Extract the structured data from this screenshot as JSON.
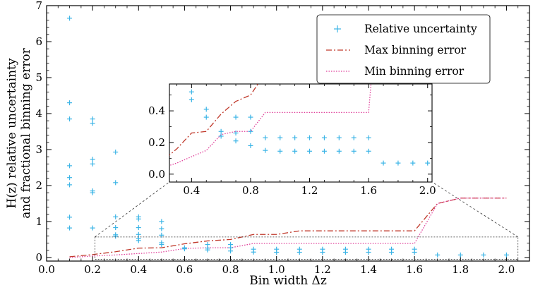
{
  "chart_data": {
    "type": "scatter",
    "xlabel": "Bin width Δz",
    "ylabel_line1": "H(z) relative uncertainty",
    "ylabel_line2": "and fractional binning error",
    "xlim": [
      0.0,
      2.1
    ],
    "ylim": [
      -0.1,
      7.0
    ],
    "x_ticks": [
      "0.0",
      "0.2",
      "0.4",
      "0.6",
      "0.8",
      "1.0",
      "1.2",
      "1.4",
      "1.6",
      "1.8",
      "2.0"
    ],
    "y_ticks": [
      "0",
      "1",
      "2",
      "3",
      "4",
      "5",
      "6",
      "7"
    ],
    "legend": [
      "Relative uncertainty",
      "Max binning error",
      "Min binning error"
    ],
    "colors": {
      "relative_uncertainty": "#3bb4e6",
      "max_binning_error": "#c0392b",
      "min_binning_error": "#e0409a"
    },
    "series": [
      {
        "name": "Relative uncertainty",
        "type": "scatter",
        "points": [
          [
            0.1,
            6.65
          ],
          [
            0.1,
            4.3
          ],
          [
            0.1,
            3.85
          ],
          [
            0.1,
            2.55
          ],
          [
            0.1,
            2.22
          ],
          [
            0.1,
            2.02
          ],
          [
            0.1,
            1.12
          ],
          [
            0.1,
            0.82
          ],
          [
            0.2,
            3.85
          ],
          [
            0.2,
            3.73
          ],
          [
            0.2,
            2.73
          ],
          [
            0.2,
            2.6
          ],
          [
            0.2,
            1.85
          ],
          [
            0.2,
            1.8
          ],
          [
            0.2,
            0.82
          ],
          [
            0.3,
            2.93
          ],
          [
            0.3,
            2.08
          ],
          [
            0.3,
            1.13
          ],
          [
            0.3,
            0.83
          ],
          [
            0.3,
            0.63
          ],
          [
            0.3,
            0.59
          ],
          [
            0.4,
            1.13
          ],
          [
            0.4,
            1.07
          ],
          [
            0.4,
            0.83
          ],
          [
            0.4,
            0.64
          ],
          [
            0.4,
            0.52
          ],
          [
            0.4,
            0.47
          ],
          [
            0.5,
            1.0
          ],
          [
            0.5,
            0.8
          ],
          [
            0.5,
            0.62
          ],
          [
            0.5,
            0.41
          ],
          [
            0.5,
            0.36
          ],
          [
            0.6,
            0.27
          ],
          [
            0.6,
            0.24
          ],
          [
            0.7,
            0.36
          ],
          [
            0.7,
            0.26
          ],
          [
            0.7,
            0.21
          ],
          [
            0.8,
            0.36
          ],
          [
            0.8,
            0.27
          ],
          [
            0.8,
            0.18
          ],
          [
            0.9,
            0.23
          ],
          [
            0.9,
            0.15
          ],
          [
            1.0,
            0.23
          ],
          [
            1.0,
            0.145
          ],
          [
            1.1,
            0.23
          ],
          [
            1.1,
            0.145
          ],
          [
            1.2,
            0.23
          ],
          [
            1.2,
            0.145
          ],
          [
            1.3,
            0.23
          ],
          [
            1.3,
            0.145
          ],
          [
            1.4,
            0.23
          ],
          [
            1.4,
            0.145
          ],
          [
            1.5,
            0.23
          ],
          [
            1.5,
            0.145
          ],
          [
            1.6,
            0.23
          ],
          [
            1.6,
            0.145
          ],
          [
            1.7,
            0.07
          ],
          [
            1.8,
            0.07
          ],
          [
            1.9,
            0.07
          ],
          [
            2.0,
            0.07
          ]
        ]
      },
      {
        "name": "Max binning error",
        "type": "line",
        "points": [
          [
            0.1,
            0.02
          ],
          [
            0.2,
            0.08
          ],
          [
            0.3,
            0.16
          ],
          [
            0.4,
            0.26
          ],
          [
            0.5,
            0.27
          ],
          [
            0.6,
            0.38
          ],
          [
            0.7,
            0.46
          ],
          [
            0.8,
            0.5
          ],
          [
            0.9,
            0.64
          ],
          [
            1.0,
            0.64
          ],
          [
            1.1,
            0.74
          ],
          [
            1.2,
            0.74
          ],
          [
            1.3,
            0.74
          ],
          [
            1.4,
            0.74
          ],
          [
            1.5,
            0.74
          ],
          [
            1.6,
            0.74
          ],
          [
            1.7,
            1.5
          ],
          [
            1.8,
            1.65
          ],
          [
            1.9,
            1.65
          ],
          [
            2.0,
            1.65
          ]
        ]
      },
      {
        "name": "Min binning error",
        "type": "line",
        "points": [
          [
            0.1,
            0.0
          ],
          [
            0.2,
            0.04
          ],
          [
            0.3,
            0.07
          ],
          [
            0.4,
            0.11
          ],
          [
            0.5,
            0.15
          ],
          [
            0.6,
            0.25
          ],
          [
            0.7,
            0.27
          ],
          [
            0.8,
            0.27
          ],
          [
            0.9,
            0.39
          ],
          [
            1.0,
            0.39
          ],
          [
            1.1,
            0.39
          ],
          [
            1.2,
            0.39
          ],
          [
            1.3,
            0.39
          ],
          [
            1.4,
            0.39
          ],
          [
            1.5,
            0.39
          ],
          [
            1.6,
            0.39
          ],
          [
            1.7,
            1.5
          ],
          [
            1.8,
            1.65
          ],
          [
            1.9,
            1.65
          ],
          [
            2.0,
            1.65
          ]
        ]
      }
    ],
    "inset": {
      "xlim": [
        0.25,
        2.03
      ],
      "ylim": [
        -0.05,
        0.57
      ],
      "x_ticks": [
        "0.4",
        "0.8",
        "1.2",
        "1.6",
        "2.0"
      ],
      "y_ticks": [
        "0.0",
        "0.2",
        "0.4"
      ],
      "zoom_region": {
        "x": [
          0.21,
          2.05
        ],
        "y": [
          -0.05,
          0.57
        ]
      }
    }
  }
}
